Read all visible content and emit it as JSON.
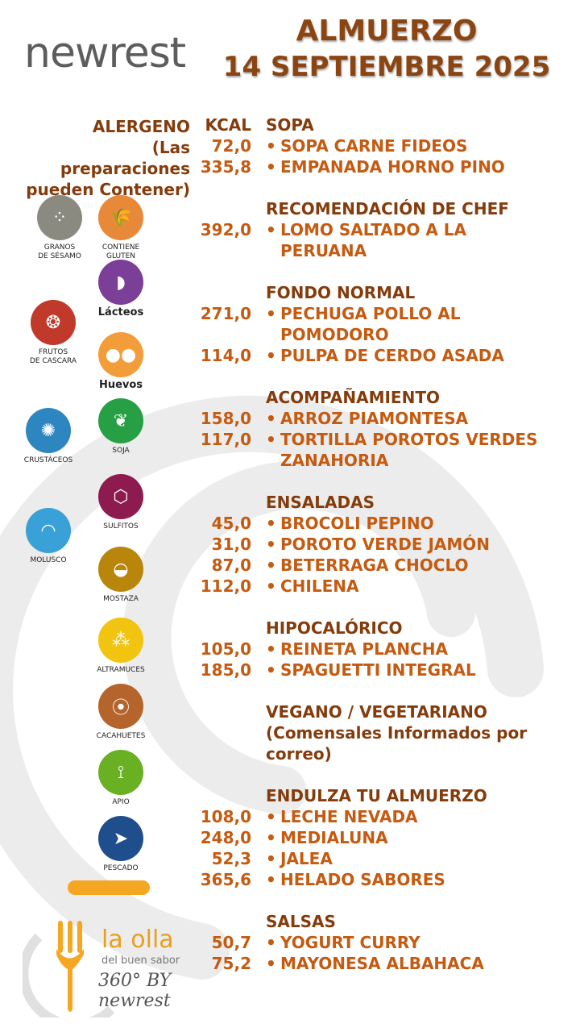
{
  "brand": {
    "logo_text": "newrest"
  },
  "title": {
    "line1": "ALMUERZO",
    "line2": "14 SEPTIEMBRE 2025"
  },
  "headers": {
    "allergen": "ALERGENO",
    "allergen_note": "(Las preparaciones pueden Contener)",
    "kcal": "KCAL"
  },
  "colors": {
    "heading": "#843c0c",
    "item": "#c55a11",
    "title": "#8b4513",
    "accent": "#f5a623"
  },
  "menu": [
    {
      "title": "SOPA",
      "items": [
        {
          "kcal": "72,0",
          "bullet": "•",
          "name": "SOPA CARNE FIDEOS"
        },
        {
          "kcal": "335,8",
          "bullet": "•",
          "name": "EMPANADA HORNO PINO"
        }
      ]
    },
    {
      "title": "RECOMENDACIÓN DE CHEF",
      "items": [
        {
          "kcal": "392,0",
          "bullet": "•",
          "name": "LOMO SALTADO A LA PERUANA"
        }
      ]
    },
    {
      "title": "FONDO NORMAL",
      "items": [
        {
          "kcal": "271,0",
          "bullet": "•",
          "name": "PECHUGA POLLO AL POMODORO"
        },
        {
          "kcal": "114,0",
          "bullet": "•",
          "name": "PULPA DE CERDO ASADA"
        }
      ]
    },
    {
      "title": "ACOMPAÑAMIENTO",
      "items": [
        {
          "kcal": "158,0",
          "bullet": "•",
          "name": "ARROZ PIAMONTESA"
        },
        {
          "kcal": "117,0",
          "bullet": "•",
          "name": "TORTILLA POROTOS VERDES ZANAHORIA"
        }
      ]
    },
    {
      "title": "ENSALADAS",
      "items": [
        {
          "kcal": "45,0",
          "bullet": "•",
          "name": "BROCOLI PEPINO"
        },
        {
          "kcal": "31,0",
          "bullet": "•",
          "name": "POROTO VERDE JAMÓN"
        },
        {
          "kcal": "87,0",
          "bullet": "•",
          "name": "BETERRAGA CHOCLO"
        },
        {
          "kcal": "112,0",
          "bullet": "•",
          "name": "CHILENA"
        }
      ]
    },
    {
      "title": "HIPOCALÓRICO",
      "items": [
        {
          "kcal": "105,0",
          "bullet": "•",
          "name": "REINETA PLANCHA"
        },
        {
          "kcal": "185,0",
          "bullet": "•",
          "name": "SPAGUETTI INTEGRAL"
        }
      ]
    },
    {
      "title": "VEGANO / VEGETARIANO",
      "note": "(Comensales Informados por correo)",
      "items": []
    },
    {
      "title": "ENDULZA TU ALMUERZO",
      "items": [
        {
          "kcal": "108,0",
          "bullet": "•",
          "name": "LECHE NEVADA"
        },
        {
          "kcal": "248,0",
          "bullet": "•",
          "name": "MEDIALUNA"
        },
        {
          "kcal": "52,3",
          "bullet": "•",
          "name": "JALEA"
        },
        {
          "kcal": "365,6",
          "bullet": "•",
          "name": "HELADO SABORES"
        }
      ]
    },
    {
      "title": "SALSAS",
      "items": [
        {
          "kcal": "50,7",
          "bullet": "•",
          "name": "YOGURT  CURRY"
        },
        {
          "kcal": "75,2",
          "bullet": "•",
          "name": "MAYONESA ALBAHACA"
        }
      ]
    }
  ],
  "allergens": [
    {
      "key": "sesame",
      "label": "GRANOS\nDE SÉSAMO",
      "icon": "sesame-seeds-icon",
      "color": "#8a8a80"
    },
    {
      "key": "gluten",
      "label": "CONTIENE\nGLUTEN",
      "icon": "wheat-icon",
      "color": "#e8893a"
    },
    {
      "key": "dairy",
      "label": "Lácteos",
      "icon": "milk-jug-icon",
      "color": "#7b3f98"
    },
    {
      "key": "nuts",
      "label": "FRUTOS\nDE CASCARA",
      "icon": "walnut-icon",
      "color": "#c0392b"
    },
    {
      "key": "eggs",
      "label": "Huevos",
      "icon": "eggs-icon",
      "color": "#f39c3a"
    },
    {
      "key": "crustaceans",
      "label": "CRUSTÁCEOS",
      "icon": "crab-icon",
      "color": "#2e86c1"
    },
    {
      "key": "soy",
      "label": "SOJA",
      "icon": "soy-leaf-icon",
      "color": "#27a045"
    },
    {
      "key": "sulfites",
      "label": "SULFITOS",
      "icon": "sulfite-molecule-icon",
      "color": "#8e1b4f"
    },
    {
      "key": "mollusc",
      "label": "MOLUSCO",
      "icon": "shell-icon",
      "color": "#3aa0d8"
    },
    {
      "key": "mustard",
      "label": "MOSTAZA",
      "icon": "mustard-icon",
      "color": "#b8860b"
    },
    {
      "key": "lupin",
      "label": "ALTRAMUCES",
      "icon": "lupin-beans-icon",
      "color": "#f1c40f"
    },
    {
      "key": "peanuts",
      "label": "CACAHUETES",
      "icon": "peanut-icon",
      "color": "#b5652b"
    },
    {
      "key": "celery",
      "label": "APIO",
      "icon": "celery-icon",
      "color": "#6ab023"
    },
    {
      "key": "fish",
      "label": "PESCADO",
      "icon": "fish-icon",
      "color": "#1f4e8c"
    }
  ],
  "footer_logo": {
    "name": "la olla",
    "tagline": "del buen sabor",
    "mark": "360° BY newrest"
  }
}
